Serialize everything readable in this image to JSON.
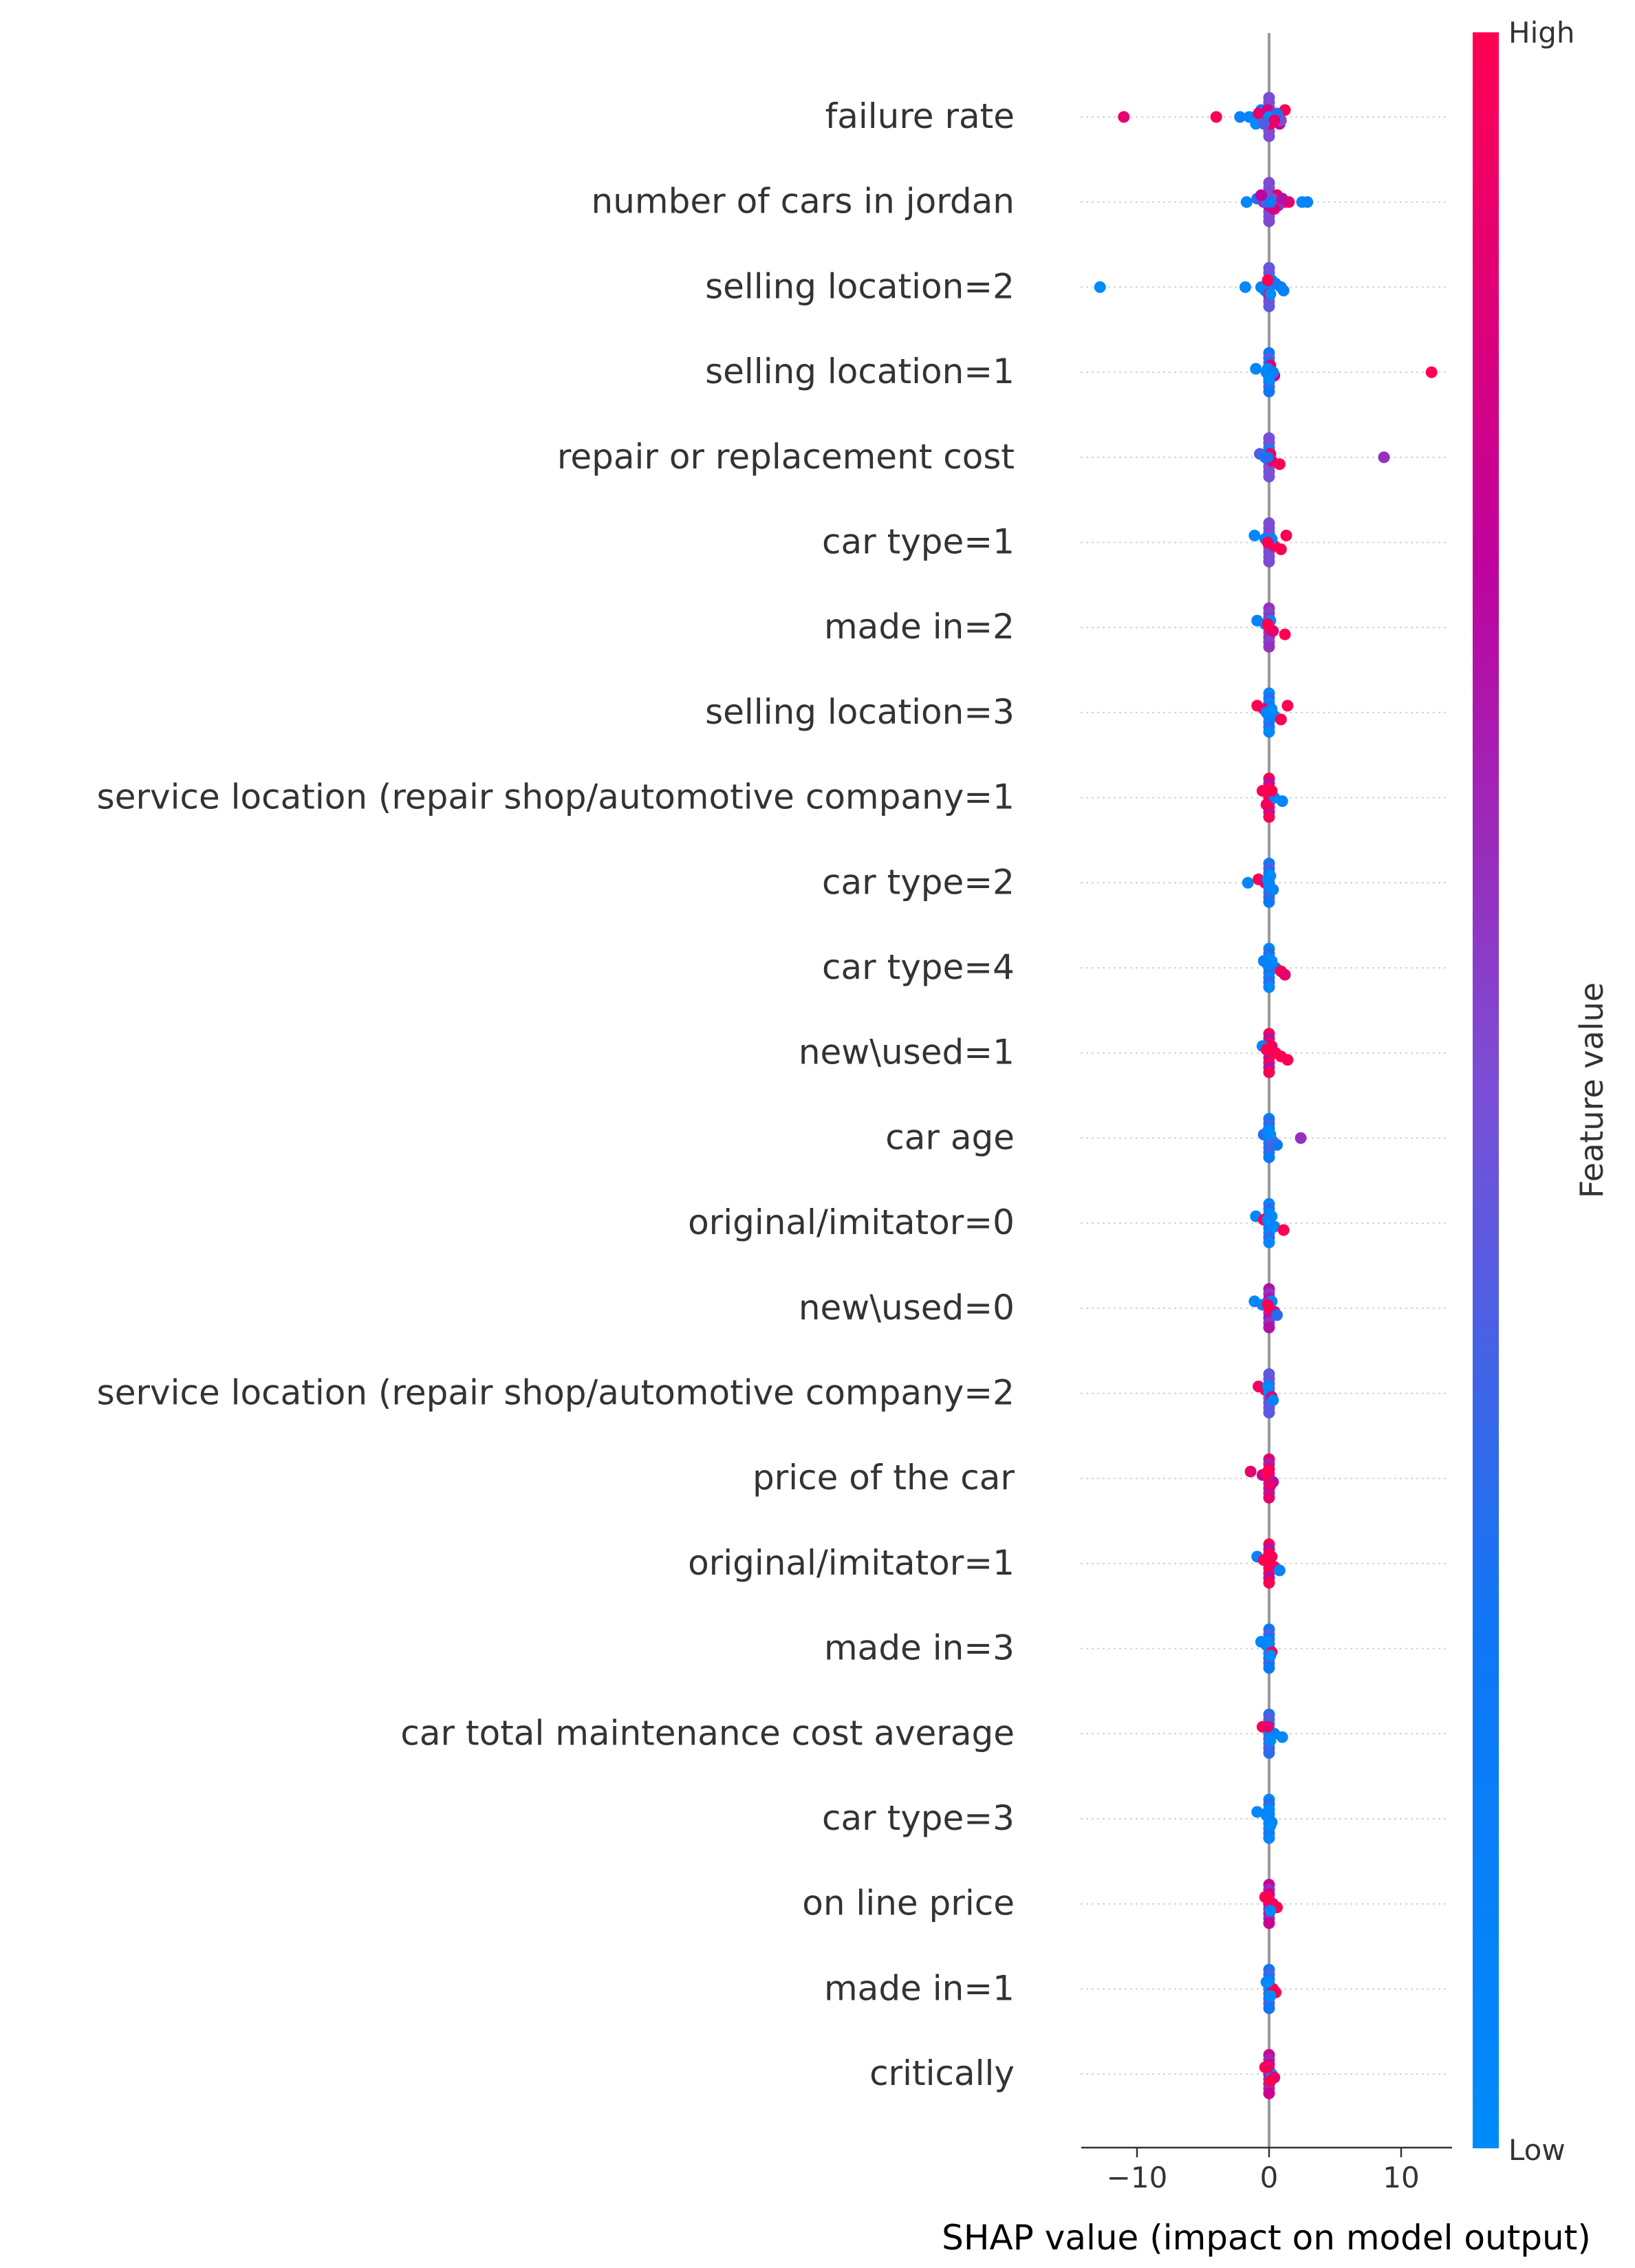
{
  "chart_data": {
    "type": "scatter",
    "subtype": "shap-beeswarm-summary",
    "title": "",
    "xlabel": "SHAP value (impact on model output)",
    "ylabel": "",
    "xlim": [
      -14,
      14
    ],
    "x_ticks": [
      -10,
      0,
      10
    ],
    "x_tick_labels": [
      "−10",
      "0",
      "10"
    ],
    "grid": "dotted horizontal row guides",
    "zero_line": true,
    "colorbar": {
      "label": "Feature value",
      "high_label": "High",
      "low_label": "Low",
      "low_color": "#008bfb",
      "high_color": "#ff0051",
      "placement": "right"
    },
    "features": [
      {
        "name": "failure rate",
        "points": [
          [
            -11.0,
            0.9
          ],
          [
            -4.0,
            1.0
          ],
          [
            -2.2,
            0.1
          ],
          [
            -1.5,
            0.1
          ],
          [
            -1.0,
            0.0
          ],
          [
            -0.6,
            0.2
          ],
          [
            -0.3,
            0.1
          ],
          [
            0.2,
            0.4
          ],
          [
            0.5,
            0.6
          ],
          [
            0.8,
            0.8
          ],
          [
            1.2,
            1.0
          ],
          [
            -0.8,
            0.9
          ],
          [
            0.3,
            0.7
          ],
          [
            0.9,
            0.5
          ],
          [
            0.1,
            0.95
          ],
          [
            -0.1,
            0.85
          ],
          [
            0.6,
            0.3
          ],
          [
            0.0,
            0.05
          ],
          [
            0.4,
            0.9
          ],
          [
            -0.4,
            0.4
          ]
        ]
      },
      {
        "name": "number of cars in jordan",
        "points": [
          [
            -1.7,
            0.05
          ],
          [
            -0.9,
            0.3
          ],
          [
            -0.4,
            0.6
          ],
          [
            0.0,
            0.8
          ],
          [
            0.3,
            0.7
          ],
          [
            0.6,
            0.9
          ],
          [
            0.9,
            1.0
          ],
          [
            1.2,
            0.95
          ],
          [
            1.5,
            0.9
          ],
          [
            2.5,
            0.05
          ],
          [
            2.9,
            0.1
          ],
          [
            0.2,
            0.5
          ],
          [
            -0.2,
            0.4
          ],
          [
            0.7,
            0.6
          ],
          [
            0.4,
            0.85
          ],
          [
            -0.6,
            0.75
          ],
          [
            1.0,
            0.7
          ],
          [
            0.1,
            0.2
          ]
        ]
      },
      {
        "name": "selling location=2",
        "points": [
          [
            -12.8,
            0.0
          ],
          [
            -1.8,
            0.05
          ],
          [
            -0.6,
            0.1
          ],
          [
            -0.3,
            0.1
          ],
          [
            0.0,
            1.0
          ],
          [
            0.2,
            0.1
          ],
          [
            0.5,
            0.15
          ],
          [
            0.9,
            0.2
          ],
          [
            1.1,
            0.1
          ],
          [
            0.1,
            0.0
          ],
          [
            -0.1,
            1.0
          ]
        ]
      },
      {
        "name": "selling location=1",
        "points": [
          [
            12.3,
            1.0
          ],
          [
            -1.0,
            0.05
          ],
          [
            -0.2,
            0.1
          ],
          [
            0.4,
            0.8
          ],
          [
            0.0,
            0.0
          ],
          [
            0.1,
            0.9
          ],
          [
            -0.1,
            0.05
          ],
          [
            0.3,
            0.1
          ]
        ]
      },
      {
        "name": "repair or replacement cost",
        "points": [
          [
            8.7,
            0.6
          ],
          [
            -0.7,
            0.4
          ],
          [
            -0.3,
            0.2
          ],
          [
            0.2,
            0.9
          ],
          [
            0.8,
            1.0
          ],
          [
            0.0,
            0.1
          ],
          [
            0.1,
            0.95
          ],
          [
            -0.1,
            0.3
          ]
        ]
      },
      {
        "name": "car type=1",
        "points": [
          [
            -1.1,
            0.05
          ],
          [
            -0.3,
            0.1
          ],
          [
            0.0,
            0.9
          ],
          [
            0.4,
            1.0
          ],
          [
            0.9,
            1.0
          ],
          [
            1.3,
            1.0
          ],
          [
            0.2,
            0.05
          ],
          [
            -0.1,
            1.0
          ]
        ]
      },
      {
        "name": "made in=2",
        "points": [
          [
            -0.9,
            0.1
          ],
          [
            -0.3,
            0.05
          ],
          [
            0.0,
            1.0
          ],
          [
            0.3,
            0.9
          ],
          [
            1.2,
            1.0
          ],
          [
            0.1,
            0.05
          ],
          [
            -0.1,
            1.0
          ]
        ]
      },
      {
        "name": "selling location=3",
        "points": [
          [
            -0.9,
            1.0
          ],
          [
            -0.4,
            0.95
          ],
          [
            0.0,
            0.05
          ],
          [
            0.4,
            0.1
          ],
          [
            0.9,
            1.0
          ],
          [
            1.4,
            1.0
          ],
          [
            0.2,
            0.0
          ],
          [
            -0.2,
            0.05
          ]
        ]
      },
      {
        "name": "service location (repair shop/automotive company=1",
        "points": [
          [
            -0.5,
            1.0
          ],
          [
            0.0,
            1.0
          ],
          [
            0.4,
            0.1
          ],
          [
            1.0,
            0.05
          ],
          [
            -0.2,
            0.95
          ],
          [
            0.2,
            1.0
          ]
        ]
      },
      {
        "name": "car type=2",
        "points": [
          [
            -1.6,
            0.05
          ],
          [
            -0.8,
            1.0
          ],
          [
            -0.3,
            0.9
          ],
          [
            0.0,
            0.05
          ],
          [
            0.3,
            0.1
          ],
          [
            0.1,
            0.0
          ],
          [
            -0.1,
            0.05
          ]
        ]
      },
      {
        "name": "car type=4",
        "points": [
          [
            -0.4,
            0.1
          ],
          [
            0.0,
            0.05
          ],
          [
            0.5,
            0.3
          ],
          [
            0.9,
            1.0
          ],
          [
            1.2,
            0.9
          ],
          [
            0.2,
            0.0
          ],
          [
            -0.1,
            0.1
          ]
        ]
      },
      {
        "name": "new\\used=1",
        "points": [
          [
            -0.5,
            0.1
          ],
          [
            0.0,
            1.0
          ],
          [
            0.5,
            1.0
          ],
          [
            0.9,
            1.0
          ],
          [
            1.4,
            1.0
          ],
          [
            0.2,
            0.95
          ],
          [
            -0.2,
            1.0
          ]
        ]
      },
      {
        "name": "car age",
        "points": [
          [
            2.4,
            0.6
          ],
          [
            -0.4,
            0.3
          ],
          [
            0.0,
            0.1
          ],
          [
            0.3,
            0.5
          ],
          [
            0.6,
            0.2
          ],
          [
            -0.1,
            0.05
          ],
          [
            0.1,
            0.0
          ]
        ]
      },
      {
        "name": "original/imitator=0",
        "points": [
          [
            -1.0,
            0.05
          ],
          [
            -0.4,
            1.0
          ],
          [
            0.0,
            0.1
          ],
          [
            0.4,
            0.05
          ],
          [
            1.1,
            1.0
          ],
          [
            0.2,
            0.0
          ],
          [
            -0.1,
            0.05
          ]
        ]
      },
      {
        "name": "new\\used=0",
        "points": [
          [
            -1.1,
            0.05
          ],
          [
            -0.5,
            0.1
          ],
          [
            0.0,
            1.0
          ],
          [
            0.4,
            0.9
          ],
          [
            0.6,
            0.3
          ],
          [
            0.2,
            0.1
          ],
          [
            -0.1,
            1.0
          ]
        ]
      },
      {
        "name": "service location (repair shop/automotive company=2",
        "points": [
          [
            -0.8,
            0.95
          ],
          [
            -0.3,
            1.0
          ],
          [
            0.0,
            0.05
          ],
          [
            0.2,
            0.9
          ],
          [
            0.3,
            0.1
          ],
          [
            -0.1,
            0.05
          ]
        ]
      },
      {
        "name": "price of the car",
        "points": [
          [
            -1.4,
            0.9
          ],
          [
            -0.5,
            0.8
          ],
          [
            0.0,
            1.0
          ],
          [
            0.3,
            0.7
          ],
          [
            0.1,
            0.9
          ],
          [
            -0.1,
            1.0
          ]
        ]
      },
      {
        "name": "original/imitator=1",
        "points": [
          [
            -0.9,
            0.1
          ],
          [
            -0.4,
            1.0
          ],
          [
            0.0,
            1.0
          ],
          [
            0.4,
            0.95
          ],
          [
            0.8,
            0.1
          ],
          [
            0.2,
            1.0
          ],
          [
            -0.2,
            1.0
          ]
        ]
      },
      {
        "name": "made in=3",
        "points": [
          [
            -0.6,
            0.05
          ],
          [
            -0.2,
            0.1
          ],
          [
            0.0,
            0.05
          ],
          [
            0.2,
            1.0
          ],
          [
            0.1,
            0.0
          ],
          [
            -0.1,
            0.05
          ]
        ]
      },
      {
        "name": "car total maintenance cost average",
        "points": [
          [
            -0.5,
            1.0
          ],
          [
            0.0,
            0.05
          ],
          [
            0.4,
            0.1
          ],
          [
            1.0,
            0.05
          ],
          [
            0.1,
            0.0
          ],
          [
            -0.1,
            0.9
          ]
        ]
      },
      {
        "name": "car type=3",
        "points": [
          [
            -0.9,
            0.05
          ],
          [
            -0.2,
            0.05
          ],
          [
            0.0,
            0.05
          ],
          [
            0.2,
            0.1
          ],
          [
            0.1,
            0.0
          ],
          [
            -0.1,
            0.05
          ]
        ]
      },
      {
        "name": "on line price",
        "points": [
          [
            -0.3,
            1.0
          ],
          [
            0.0,
            1.0
          ],
          [
            0.3,
            0.9
          ],
          [
            0.6,
            1.0
          ],
          [
            0.1,
            0.05
          ],
          [
            -0.1,
            1.0
          ]
        ]
      },
      {
        "name": "made in=1",
        "points": [
          [
            -0.2,
            0.05
          ],
          [
            0.0,
            0.05
          ],
          [
            0.3,
            1.0
          ],
          [
            0.5,
            1.0
          ],
          [
            0.1,
            0.0
          ],
          [
            -0.1,
            0.05
          ]
        ]
      },
      {
        "name": "critically",
        "points": [
          [
            -0.3,
            1.0
          ],
          [
            0.0,
            1.0
          ],
          [
            0.2,
            0.1
          ],
          [
            0.4,
            0.9
          ],
          [
            0.1,
            1.0
          ],
          [
            -0.1,
            0.95
          ]
        ]
      }
    ]
  }
}
